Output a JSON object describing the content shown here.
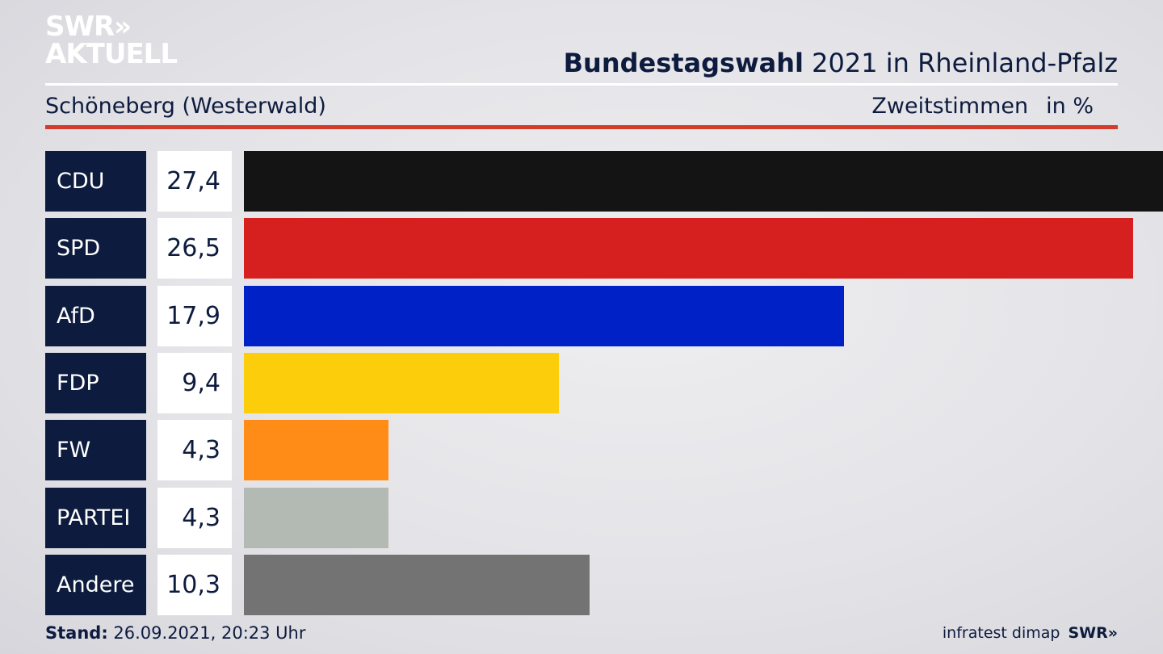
{
  "brand": {
    "line1": "SWR»",
    "line2": "AKTUELL"
  },
  "header": {
    "title_bold": "Bundestagswahl",
    "title_rest": " 2021 in Rheinland-Pfalz",
    "subtitle": "Schöneberg (Westerwald)",
    "measure": "Zweitstimmen",
    "unit": "in %"
  },
  "chart_data": {
    "type": "bar",
    "orientation": "horizontal",
    "categories": [
      "CDU",
      "SPD",
      "AfD",
      "FDP",
      "FW",
      "PARTEI",
      "Andere"
    ],
    "values": [
      27.4,
      26.5,
      17.9,
      9.4,
      4.3,
      4.3,
      10.3
    ],
    "value_labels": [
      "27,4",
      "26,5",
      "17,9",
      "9,4",
      "4,3",
      "4,3",
      "10,3"
    ],
    "colors": [
      "#141414",
      "#d62020",
      "#0021c6",
      "#fccd0a",
      "#ff8c17",
      "#b3bab3",
      "#737373"
    ],
    "xlim": [
      0,
      27.4
    ]
  },
  "footer": {
    "stand_label": "Stand:",
    "stand_value": " 26.09.2021, 20:23 Uhr",
    "source": "infratest dimap",
    "brand": "SWR»"
  }
}
